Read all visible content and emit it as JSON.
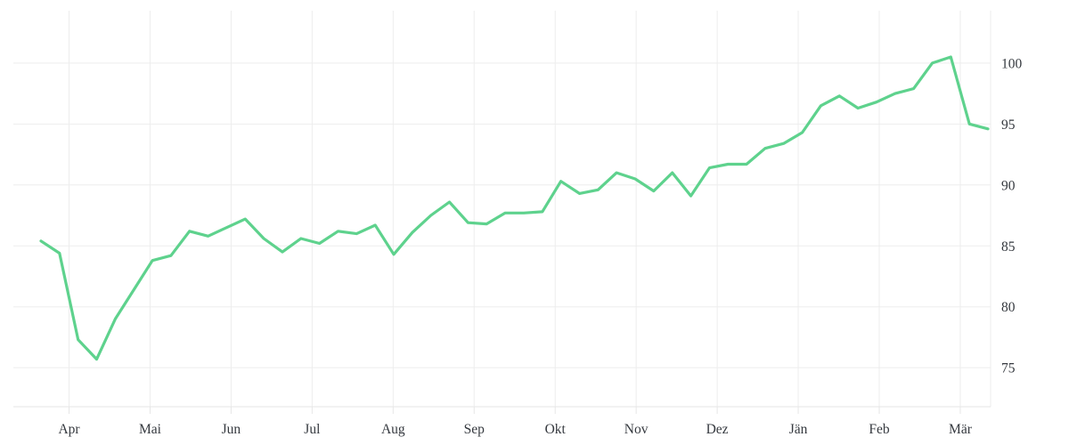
{
  "chart_data": {
    "type": "line",
    "title": "",
    "x_labels": [
      "Apr",
      "Mai",
      "Jun",
      "Jul",
      "Aug",
      "Sep",
      "Okt",
      "Nov",
      "Dez",
      "Jän",
      "Feb",
      "Mär"
    ],
    "yticks": [
      75,
      80,
      85,
      90,
      95,
      100
    ],
    "ylim": [
      71.8,
      104.3
    ],
    "grid": true,
    "legend_position": "none",
    "series": [
      {
        "values": [
          85.4,
          84.4,
          77.3,
          75.7,
          79.0,
          81.4,
          83.8,
          84.2,
          86.2,
          85.8,
          86.5,
          87.2,
          85.6,
          84.5,
          85.6,
          85.2,
          86.2,
          86.0,
          86.7,
          84.3,
          86.1,
          87.5,
          88.6,
          86.9,
          86.8,
          87.7,
          87.7,
          87.8,
          90.3,
          89.3,
          89.6,
          91.0,
          90.5,
          89.5,
          91.0,
          89.1,
          91.4,
          91.7,
          91.7,
          93.0,
          93.4,
          94.3,
          96.5,
          97.3,
          96.3,
          96.8,
          97.5,
          97.9,
          100.0,
          100.5,
          95.0,
          94.6
        ]
      }
    ],
    "colors": {
      "line": "#5ed28d",
      "grid": "#ededed",
      "axis": "#e6e6e6",
      "label": "#35393f",
      "background": "#ffffff"
    }
  }
}
